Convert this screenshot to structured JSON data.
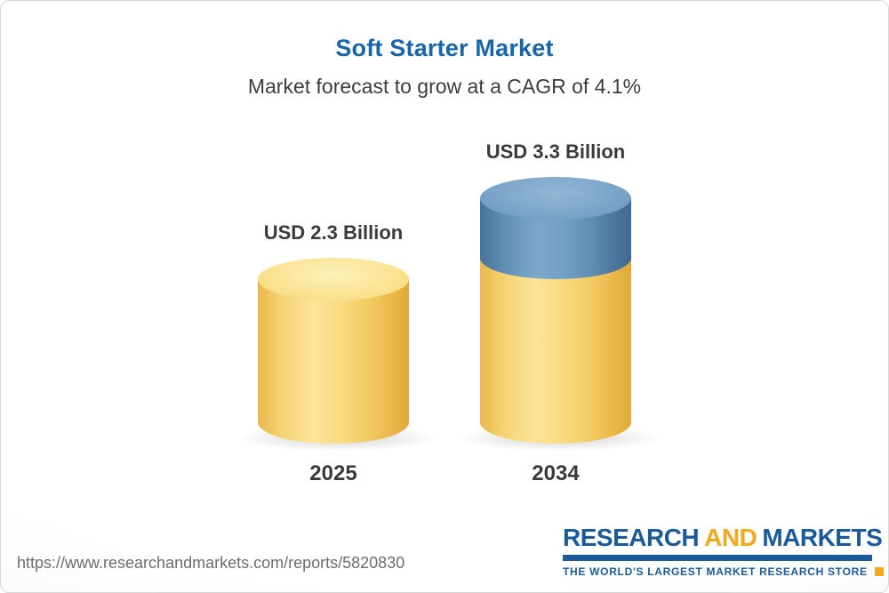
{
  "chart_data": {
    "type": "bar",
    "title": "Soft Starter Market",
    "subtitle": "Market forecast to grow at a CAGR of 4.1%",
    "categories": [
      "2025",
      "2034"
    ],
    "values": [
      2.3,
      3.3
    ],
    "value_labels": [
      "USD 2.3 Billion",
      "USD 3.3 Billion"
    ],
    "unit": "USD Billion",
    "cagr_pct": 4.1,
    "ylim": [
      0,
      3.3
    ],
    "grid": false,
    "legend": "none",
    "bar_style": "3d-cylinder",
    "bar_color": "#f6cf65",
    "growth_segment_color": "#5e8cb4"
  },
  "footer": {
    "url": "https://www.researchandmarkets.com/reports/5820830",
    "logo": {
      "word_research": "RESEARCH",
      "word_and": "AND",
      "word_markets": "MARKETS",
      "tagline": "THE WORLD'S LARGEST MARKET RESEARCH STORE"
    }
  },
  "colors": {
    "title_blue": "#1766ab",
    "text_dark": "#3a3a3a",
    "cylinder_yellow": "#f6cf65",
    "cylinder_blue": "#5e8cb4",
    "logo_blue": "#1b5a9b",
    "logo_gold": "#f0a81c",
    "url_gray": "#6d6d6d"
  }
}
